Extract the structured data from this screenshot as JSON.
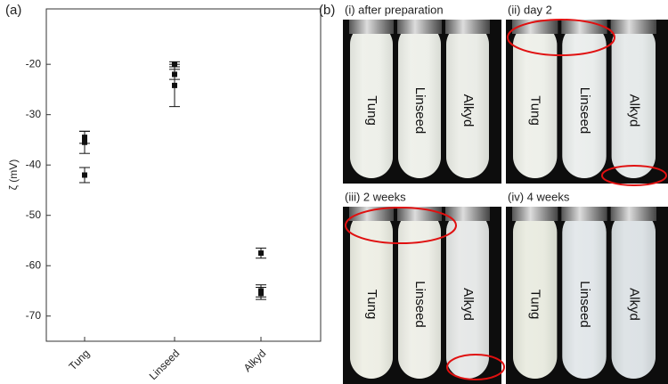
{
  "chart_data": {
    "type": "scatter",
    "panel_label": "(a)",
    "y_label": "ζ (mV)",
    "categories": [
      "Tung",
      "Linseed",
      "Alkyd"
    ],
    "series": [
      {
        "color": "#111111",
        "values": [
          -34.5,
          -20,
          -57.5
        ],
        "errors": [
          1.2,
          0.5,
          1
        ]
      },
      {
        "color": "#111111",
        "values": [
          -35.5,
          -22,
          -65
        ],
        "errors": [
          2.2,
          1,
          1.2
        ]
      },
      {
        "color": "#111111",
        "values": [
          -42,
          -24.2,
          -65.5
        ],
        "errors": [
          1.5,
          4.2,
          1.2
        ]
      }
    ],
    "ylim": [
      -75,
      -9
    ],
    "yticks": [
      -70,
      -60,
      -50,
      -40,
      -30,
      -20
    ],
    "grid": false
  },
  "photos": {
    "panel_label": "(b)",
    "panels": [
      {
        "title": "(i) after preparation",
        "tubes": [
          "Tung",
          "Linseed",
          "Alkyd"
        ]
      },
      {
        "title": "(ii) day 2",
        "tubes": [
          "Tung",
          "Linseed",
          "Alkyd"
        ]
      },
      {
        "title": "(iii) 2 weeks",
        "tubes": [
          "Tung",
          "Linseed",
          "Alkyd"
        ]
      },
      {
        "title": "(iv) 4 weeks",
        "tubes": [
          "Tung",
          "Linseed",
          "Alkyd"
        ]
      }
    ]
  }
}
